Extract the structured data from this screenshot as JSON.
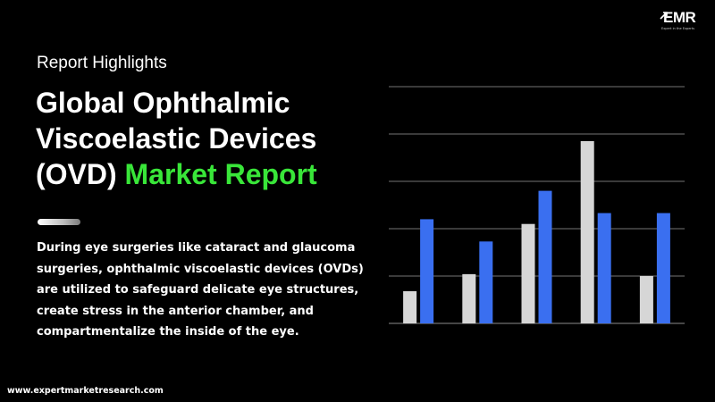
{
  "logo": {
    "text": "EMR",
    "tagline": "Expert in the Experts"
  },
  "header": {
    "eyebrow": "Report Highlights",
    "title_line1": "Global Ophthalmic",
    "title_line2": "Viscoelastic Devices",
    "title_line3_plain": "(OVD) ",
    "title_line3_accent": "Market Report"
  },
  "description": "During eye surgeries like cataract and glaucoma surgeries, ophthalmic viscoelastic devices (OVDs) are utilized to safeguard delicate eye structures, create stress in the anterior chamber, and compartmentalize the inside of the eye.",
  "footer": {
    "url": "www.expertmarketresearch.com"
  },
  "colors": {
    "background": "#000000",
    "accent_green": "#39e639",
    "series_gray": "#d6d6d6",
    "series_blue": "#3a6ff0",
    "gridline": "#ffffff"
  },
  "chart_data": {
    "type": "bar",
    "categories": [
      "",
      "",
      "",
      "",
      ""
    ],
    "series": [
      {
        "values": [
          0.68,
          1.04,
          2.1,
          3.85,
          1.0
        ]
      },
      {
        "values": [
          2.2,
          1.73,
          2.8,
          2.33,
          2.33
        ]
      }
    ],
    "ylim": [
      0,
      5
    ],
    "yticks": [
      0,
      1,
      2,
      3,
      4,
      5
    ],
    "grid": true,
    "legend": "none",
    "title": "",
    "xlabel": "",
    "ylabel": ""
  }
}
